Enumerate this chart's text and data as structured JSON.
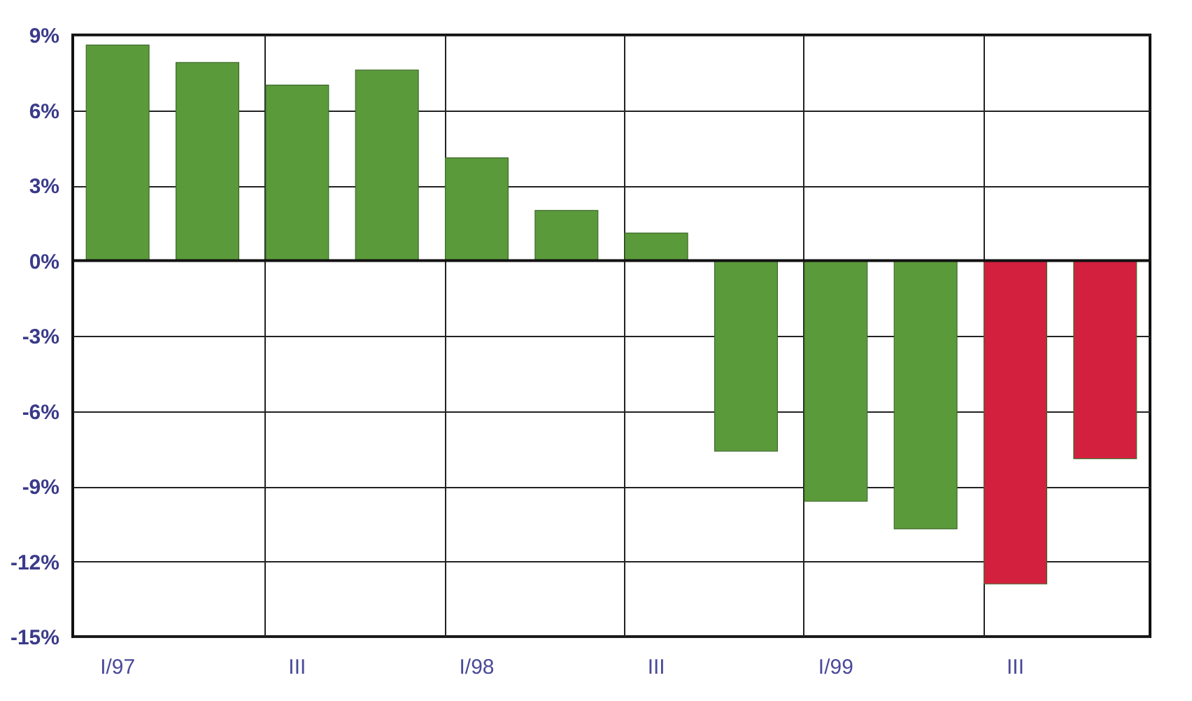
{
  "chart_data": {
    "type": "bar",
    "categories": [
      "I/97",
      null,
      "III",
      null,
      "I/98",
      null,
      "III",
      null,
      "I/99",
      null,
      "III",
      null
    ],
    "values": [
      8.6,
      7.9,
      7.0,
      7.6,
      4.1,
      2.0,
      1.1,
      -7.6,
      -9.6,
      -10.7,
      -12.9,
      -7.9
    ],
    "colors": [
      "#5b9a3b",
      "#5b9a3b",
      "#5b9a3b",
      "#5b9a3b",
      "#5b9a3b",
      "#5b9a3b",
      "#5b9a3b",
      "#5b9a3b",
      "#5b9a3b",
      "#5b9a3b",
      "#d3203f",
      "#d3203f"
    ],
    "ylim": [
      -15,
      9
    ],
    "yticks": [
      {
        "value": -15,
        "label": "-15%"
      },
      {
        "value": -12,
        "label": "-12%"
      },
      {
        "value": -9,
        "label": "-9%"
      },
      {
        "value": -6,
        "label": "-6%"
      },
      {
        "value": -3,
        "label": "-3%"
      },
      {
        "value": 0,
        "label": "0%"
      },
      {
        "value": 3,
        "label": "3%"
      },
      {
        "value": 6,
        "label": "6%"
      },
      {
        "value": 9,
        "label": "9%"
      }
    ],
    "grid": true
  }
}
